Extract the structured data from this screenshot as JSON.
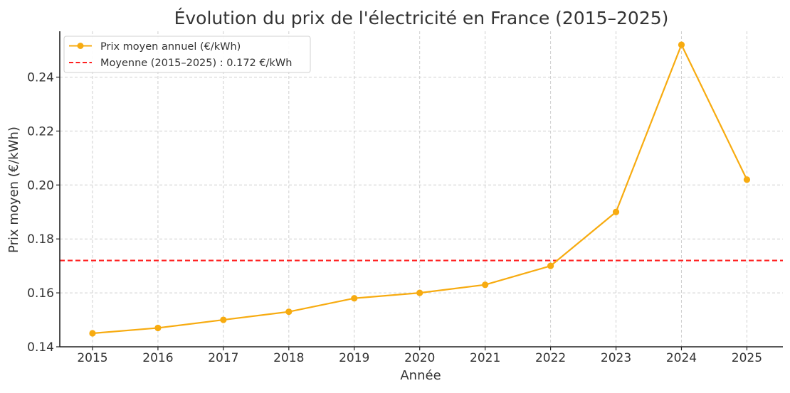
{
  "chart_data": {
    "type": "line",
    "title": "Évolution du prix de l'électricité en France (2015–2025)",
    "xlabel": "Année",
    "ylabel": "Prix moyen (€/kWh)",
    "x": [
      2015,
      2016,
      2017,
      2018,
      2019,
      2020,
      2021,
      2022,
      2023,
      2024,
      2025
    ],
    "x_tick_labels": [
      "2015",
      "2016",
      "2017",
      "2018",
      "2019",
      "2020",
      "2021",
      "2022",
      "2023",
      "2024",
      "2025"
    ],
    "y_ticks": [
      0.14,
      0.16,
      0.18,
      0.2,
      0.22,
      0.24
    ],
    "y_tick_labels": [
      "0.14",
      "0.16",
      "0.18",
      "0.20",
      "0.22",
      "0.24"
    ],
    "xlim": [
      2014.5,
      2025.55
    ],
    "ylim": [
      0.14,
      0.257
    ],
    "grid": true,
    "legend_position": "top-left",
    "series": [
      {
        "name": "Prix moyen annuel (€/kWh)",
        "color": "#f7ab10",
        "values": [
          0.145,
          0.147,
          0.15,
          0.153,
          0.158,
          0.16,
          0.163,
          0.17,
          0.19,
          0.252,
          0.202
        ]
      }
    ],
    "reference_line": {
      "name": "Moyenne (2015–2025) : 0.172 €/kWh",
      "value": 0.172,
      "color": "#ff2020",
      "style": "dashed"
    }
  }
}
